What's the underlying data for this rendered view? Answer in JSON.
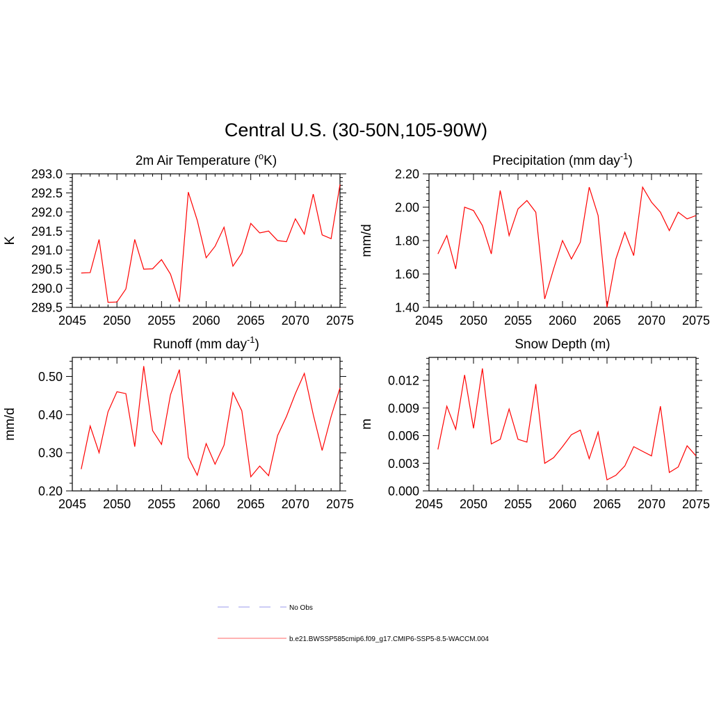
{
  "figure_title": "Central U.S. (30-50N,105-90W)",
  "legend": [
    {
      "label": "No Obs",
      "color": "#9999ee",
      "dash": true
    },
    {
      "label": "b.e21.BWSSP585cmip6.f09_g17.CMIP6-SSP5-8.5-WACCM.004",
      "color": "#ff6666",
      "dash": false
    }
  ],
  "series_color": "#ff0000",
  "chart_data": [
    {
      "type": "line",
      "title_main": "2m Air Temperature (",
      "title_sup": "o",
      "title_rest": "K)",
      "title_mid": "",
      "title_end": "",
      "ylabel": "K",
      "xlim": [
        2045,
        2075
      ],
      "ylim": [
        289.5,
        293.0
      ],
      "xticks": [
        2045,
        2050,
        2055,
        2060,
        2065,
        2070,
        2075
      ],
      "xtick_labels": [
        "2045",
        "2050",
        "2055",
        "2060",
        "2065",
        "2070",
        "2075"
      ],
      "yticks": [
        289.5,
        290.0,
        290.5,
        291.0,
        291.5,
        292.0,
        292.5,
        293.0
      ],
      "ytick_labels": [
        "289.5",
        "290.0",
        "290.5",
        "291.0",
        "291.5",
        "292.0",
        "292.5",
        "293.0"
      ],
      "x": [
        2046,
        2047,
        2048,
        2049,
        2050,
        2051,
        2052,
        2053,
        2054,
        2055,
        2056,
        2057,
        2058,
        2059,
        2060,
        2061,
        2062,
        2063,
        2064,
        2065,
        2066,
        2067,
        2068,
        2069,
        2070,
        2071,
        2072,
        2073,
        2074,
        2075
      ],
      "values": [
        290.4,
        290.41,
        291.28,
        289.63,
        289.64,
        289.98,
        291.28,
        290.5,
        290.51,
        290.75,
        290.37,
        289.64,
        292.52,
        291.78,
        290.8,
        291.1,
        291.6,
        290.58,
        290.92,
        291.7,
        291.45,
        291.5,
        291.25,
        291.22,
        291.82,
        291.42,
        292.47,
        291.4,
        291.3,
        292.72
      ]
    },
    {
      "type": "line",
      "title_main": "Precipitation (mm day",
      "title_sup": "-1",
      "title_rest": ")",
      "ylabel": "mm/d",
      "xlim": [
        2045,
        2075
      ],
      "ylim": [
        1.4,
        2.2
      ],
      "xticks": [
        2045,
        2050,
        2055,
        2060,
        2065,
        2070,
        2075
      ],
      "xtick_labels": [
        "2045",
        "2050",
        "2055",
        "2060",
        "2065",
        "2070",
        "2075"
      ],
      "yticks": [
        1.4,
        1.6,
        1.8,
        2.0,
        2.2
      ],
      "ytick_labels": [
        "1.40",
        "1.60",
        "1.80",
        "2.00",
        "2.20"
      ],
      "x": [
        2046,
        2047,
        2048,
        2049,
        2050,
        2051,
        2052,
        2053,
        2054,
        2055,
        2056,
        2057,
        2058,
        2059,
        2060,
        2061,
        2062,
        2063,
        2064,
        2065,
        2066,
        2067,
        2068,
        2069,
        2070,
        2071,
        2072,
        2073,
        2074,
        2075
      ],
      "values": [
        1.72,
        1.83,
        1.63,
        2.0,
        1.98,
        1.89,
        1.72,
        2.1,
        1.83,
        1.99,
        2.04,
        1.97,
        1.45,
        1.63,
        1.8,
        1.69,
        1.79,
        2.12,
        1.95,
        1.4,
        1.69,
        1.85,
        1.71,
        2.12,
        2.03,
        1.97,
        1.86,
        1.97,
        1.93,
        1.95
      ]
    },
    {
      "type": "line",
      "title_main": "Runoff (mm day",
      "title_sup": "-1",
      "title_rest": ")",
      "ylabel": "mm/d",
      "xlim": [
        2045,
        2075
      ],
      "ylim": [
        0.2,
        0.55
      ],
      "xticks": [
        2045,
        2050,
        2055,
        2060,
        2065,
        2070,
        2075
      ],
      "xtick_labels": [
        "2045",
        "2050",
        "2055",
        "2060",
        "2065",
        "2070",
        "2075"
      ],
      "yticks": [
        0.2,
        0.3,
        0.4,
        0.5
      ],
      "ytick_labels": [
        "0.20",
        "0.30",
        "0.40",
        "0.50"
      ],
      "x": [
        2046,
        2047,
        2048,
        2049,
        2050,
        2051,
        2052,
        2053,
        2054,
        2055,
        2056,
        2057,
        2058,
        2059,
        2060,
        2061,
        2062,
        2063,
        2064,
        2065,
        2066,
        2067,
        2068,
        2069,
        2070,
        2071,
        2072,
        2073,
        2074,
        2075
      ],
      "values": [
        0.257,
        0.37,
        0.3,
        0.407,
        0.46,
        0.455,
        0.316,
        0.527,
        0.358,
        0.322,
        0.452,
        0.518,
        0.288,
        0.241,
        0.324,
        0.27,
        0.32,
        0.458,
        0.41,
        0.237,
        0.265,
        0.24,
        0.345,
        0.395,
        0.455,
        0.508,
        0.4,
        0.306,
        0.395,
        0.47
      ]
    },
    {
      "type": "line",
      "title_main": "Snow Depth (m)",
      "title_sup": "",
      "title_rest": "",
      "ylabel": "m",
      "xlim": [
        2045,
        2075
      ],
      "ylim": [
        0.0,
        0.0145
      ],
      "xticks": [
        2045,
        2050,
        2055,
        2060,
        2065,
        2070,
        2075
      ],
      "xtick_labels": [
        "2045",
        "2050",
        "2055",
        "2060",
        "2065",
        "2070",
        "2075"
      ],
      "yticks": [
        0.0,
        0.003,
        0.006,
        0.009,
        0.012
      ],
      "ytick_labels": [
        "0.000",
        "0.003",
        "0.006",
        "0.009",
        "0.012"
      ],
      "x": [
        2046,
        2047,
        2048,
        2049,
        2050,
        2051,
        2052,
        2053,
        2054,
        2055,
        2056,
        2057,
        2058,
        2059,
        2060,
        2061,
        2062,
        2063,
        2064,
        2065,
        2066,
        2067,
        2068,
        2069,
        2070,
        2071,
        2072,
        2073,
        2074,
        2075
      ],
      "values": [
        0.0045,
        0.0092,
        0.0067,
        0.0126,
        0.0068,
        0.0133,
        0.0051,
        0.0056,
        0.0089,
        0.0056,
        0.0053,
        0.0116,
        0.003,
        0.0036,
        0.0048,
        0.0061,
        0.0066,
        0.0035,
        0.0064,
        0.0012,
        0.0017,
        0.0027,
        0.0048,
        0.0043,
        0.0038,
        0.0092,
        0.002,
        0.0026,
        0.0049,
        0.0038
      ]
    }
  ]
}
